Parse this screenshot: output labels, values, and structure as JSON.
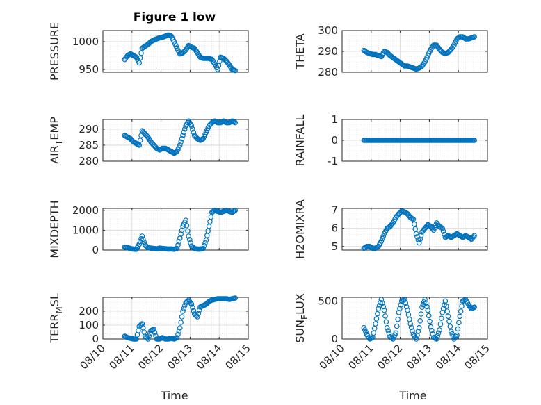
{
  "figure": {
    "title": "Figure 1 low",
    "xlabel": "Time"
  },
  "chart_data": [
    {
      "type": "scatter",
      "name": "pressure",
      "ylabel": "PRESSURE",
      "ylim": [
        945,
        1020
      ],
      "yticks": [
        950,
        1000
      ],
      "ytick_labels": [
        "950",
        "1000"
      ],
      "xlim": [
        0,
        5
      ],
      "x": [
        0.75,
        0.85,
        0.95,
        1.05,
        1.15,
        1.25,
        1.35,
        1.45,
        1.55,
        1.65,
        1.75,
        1.85,
        1.95,
        2.05,
        2.15,
        2.25,
        2.35,
        2.45,
        2.55,
        2.65,
        2.75,
        2.85,
        2.95,
        3.05,
        3.15,
        3.25,
        3.35,
        3.45,
        3.55,
        3.65,
        3.75,
        3.85,
        3.95,
        4.05,
        4.15,
        4.25,
        4.35,
        4.45,
        4.55
      ],
      "y": [
        968,
        975,
        978,
        975,
        972,
        962,
        988,
        992,
        995,
        1000,
        1003,
        1005,
        1007,
        1008,
        1010,
        1012,
        1010,
        1000,
        988,
        978,
        980,
        985,
        993,
        990,
        988,
        980,
        972,
        970,
        970,
        970,
        968,
        960,
        950,
        972,
        970,
        965,
        958,
        950,
        948
      ],
      "color": "#0072bd",
      "marker": "circle",
      "grid": true
    },
    {
      "type": "scatter",
      "name": "theta",
      "ylabel": "THETA",
      "ylim": [
        280,
        300
      ],
      "yticks": [
        280,
        290,
        300
      ],
      "ytick_labels": [
        "280",
        "290",
        "300"
      ],
      "xlim": [
        0,
        5
      ],
      "x": [
        0.75,
        0.85,
        0.95,
        1.05,
        1.15,
        1.25,
        1.35,
        1.45,
        1.55,
        1.65,
        1.75,
        1.85,
        1.95,
        2.05,
        2.15,
        2.25,
        2.35,
        2.45,
        2.55,
        2.65,
        2.75,
        2.85,
        2.95,
        3.05,
        3.15,
        3.25,
        3.35,
        3.45,
        3.55,
        3.65,
        3.75,
        3.85,
        3.95,
        4.05,
        4.15,
        4.25,
        4.35,
        4.45,
        4.55
      ],
      "y": [
        290.5,
        289.5,
        289,
        288.5,
        288.5,
        288,
        287.5,
        290,
        289.5,
        288,
        287,
        286,
        285,
        284,
        283,
        283,
        282.5,
        282,
        281.5,
        282,
        283,
        285,
        288,
        291,
        293,
        293,
        291,
        289.5,
        289,
        289.5,
        291,
        293,
        296,
        297,
        297,
        296,
        296,
        296.5,
        297
      ],
      "color": "#0072bd",
      "marker": "circle",
      "grid": true
    },
    {
      "type": "scatter",
      "name": "air_temp",
      "ylabel": "AIR_TEMP",
      "ylim": [
        280,
        293
      ],
      "yticks": [
        280,
        285,
        290
      ],
      "ytick_labels": [
        "280",
        "285",
        "290"
      ],
      "xlim": [
        0,
        5
      ],
      "x": [
        0.75,
        0.85,
        0.95,
        1.05,
        1.15,
        1.25,
        1.35,
        1.45,
        1.55,
        1.65,
        1.75,
        1.85,
        1.95,
        2.05,
        2.15,
        2.25,
        2.35,
        2.45,
        2.55,
        2.65,
        2.75,
        2.85,
        2.95,
        3.05,
        3.15,
        3.25,
        3.35,
        3.45,
        3.55,
        3.65,
        3.75,
        3.85,
        3.95,
        4.05,
        4.15,
        4.25,
        4.35,
        4.45,
        4.55
      ],
      "y": [
        288,
        287.5,
        287,
        286,
        285.5,
        285,
        289.5,
        288.5,
        287.5,
        286,
        285,
        284,
        283.5,
        284,
        284,
        283.5,
        283,
        282.5,
        283,
        285,
        288,
        291,
        292.5,
        291,
        288,
        287,
        286.5,
        287,
        289,
        291,
        292,
        292.5,
        292,
        292,
        292.5,
        292,
        292,
        292.5,
        292
      ],
      "color": "#0072bd",
      "marker": "circle",
      "grid": true
    },
    {
      "type": "scatter",
      "name": "rainfall",
      "ylabel": "RAINFALL",
      "ylim": [
        -1,
        1
      ],
      "yticks": [
        -1,
        0,
        1
      ],
      "ytick_labels": [
        "-1",
        "0",
        "1"
      ],
      "xlim": [
        0,
        5
      ],
      "x": [
        0.75,
        0.85,
        0.95,
        1.05,
        1.15,
        1.25,
        1.35,
        1.45,
        1.55,
        1.65,
        1.75,
        1.85,
        1.95,
        2.05,
        2.15,
        2.25,
        2.35,
        2.45,
        2.55,
        2.65,
        2.75,
        2.85,
        2.95,
        3.05,
        3.15,
        3.25,
        3.35,
        3.45,
        3.55,
        3.65,
        3.75,
        3.85,
        3.95,
        4.05,
        4.15,
        4.25,
        4.35,
        4.45,
        4.55
      ],
      "y": [
        0,
        0,
        0,
        0,
        0,
        0,
        0,
        0,
        0,
        0,
        0,
        0,
        0,
        0,
        0,
        0,
        0,
        0,
        0,
        0,
        0,
        0,
        0,
        0,
        0,
        0,
        0,
        0,
        0,
        0,
        0,
        0,
        0,
        0,
        0,
        0,
        0,
        0,
        0
      ],
      "color": "#0072bd",
      "marker": "circle",
      "grid": true
    },
    {
      "type": "scatter",
      "name": "mixdepth",
      "ylabel": "MIXDEPTH",
      "ylim": [
        0,
        2100
      ],
      "yticks": [
        0,
        1000,
        2000
      ],
      "ytick_labels": [
        "0",
        "1000",
        "2000"
      ],
      "xlim": [
        0,
        5
      ],
      "x": [
        0.75,
        0.85,
        0.95,
        1.05,
        1.15,
        1.25,
        1.35,
        1.45,
        1.55,
        1.65,
        1.75,
        1.85,
        1.95,
        2.05,
        2.15,
        2.25,
        2.35,
        2.45,
        2.55,
        2.65,
        2.75,
        2.85,
        2.95,
        3.05,
        3.15,
        3.25,
        3.35,
        3.45,
        3.55,
        3.65,
        3.75,
        3.85,
        3.95,
        4.05,
        4.15,
        4.25,
        4.35,
        4.45,
        4.55
      ],
      "y": [
        150,
        120,
        80,
        50,
        40,
        300,
        700,
        250,
        120,
        100,
        80,
        60,
        100,
        80,
        70,
        50,
        60,
        40,
        80,
        600,
        1200,
        1500,
        700,
        200,
        80,
        50,
        50,
        80,
        500,
        1200,
        1900,
        2000,
        1950,
        1900,
        1950,
        2000,
        1950,
        1900,
        2000
      ],
      "color": "#0072bd",
      "marker": "circle",
      "grid": true
    },
    {
      "type": "scatter",
      "name": "h2omixra",
      "ylabel": "H2OMIXRA",
      "ylim": [
        4.8,
        7.1
      ],
      "yticks": [
        5,
        6,
        7
      ],
      "ytick_labels": [
        "5",
        "6",
        "7"
      ],
      "xlim": [
        0,
        5
      ],
      "x": [
        0.75,
        0.85,
        0.95,
        1.05,
        1.15,
        1.25,
        1.35,
        1.45,
        1.55,
        1.65,
        1.75,
        1.85,
        1.95,
        2.05,
        2.15,
        2.25,
        2.35,
        2.45,
        2.55,
        2.65,
        2.75,
        2.85,
        2.95,
        3.05,
        3.15,
        3.25,
        3.35,
        3.45,
        3.55,
        3.65,
        3.75,
        3.85,
        3.95,
        4.05,
        4.15,
        4.25,
        4.35,
        4.45,
        4.55
      ],
      "y": [
        4.9,
        5,
        5,
        4.9,
        4.9,
        5,
        5.3,
        5.7,
        6,
        6.1,
        6.3,
        6.6,
        6.8,
        6.95,
        6.9,
        6.8,
        6.6,
        6.5,
        5.7,
        5.2,
        5.8,
        6,
        6.2,
        6.1,
        5.9,
        6.3,
        6.1,
        6,
        5.5,
        5.6,
        5.5,
        5.6,
        5.7,
        5.6,
        5.5,
        5.6,
        5.5,
        5.4,
        5.6
      ],
      "color": "#0072bd",
      "marker": "circle",
      "grid": true
    },
    {
      "type": "scatter",
      "name": "terr_msl",
      "ylabel": "TERR_MSL",
      "ylim": [
        0,
        300
      ],
      "yticks": [
        0,
        100,
        200
      ],
      "ytick_labels": [
        "0",
        "100",
        "200"
      ],
      "xlim": [
        0,
        5
      ],
      "x": [
        0.75,
        0.85,
        0.95,
        1.05,
        1.15,
        1.25,
        1.35,
        1.45,
        1.55,
        1.65,
        1.75,
        1.85,
        1.95,
        2.05,
        2.15,
        2.25,
        2.35,
        2.45,
        2.55,
        2.65,
        2.75,
        2.85,
        2.95,
        3.05,
        3.15,
        3.25,
        3.35,
        3.45,
        3.55,
        3.65,
        3.75,
        3.85,
        3.95,
        4.05,
        4.15,
        4.25,
        4.35,
        4.45,
        4.55
      ],
      "y": [
        20,
        10,
        5,
        0,
        0,
        90,
        110,
        20,
        0,
        60,
        70,
        0,
        0,
        10,
        0,
        0,
        5,
        0,
        10,
        80,
        200,
        260,
        280,
        250,
        180,
        160,
        230,
        240,
        250,
        270,
        280,
        285,
        290,
        290,
        290,
        290,
        285,
        290,
        295
      ],
      "color": "#0072bd",
      "marker": "circle",
      "grid": true
    },
    {
      "type": "scatter",
      "name": "sun_flux",
      "ylabel": "SUN_FLUX",
      "ylim": [
        0,
        550
      ],
      "yticks": [
        0,
        500
      ],
      "ytick_labels": [
        "0",
        "500"
      ],
      "xlim": [
        0,
        5
      ],
      "x": [
        0.75,
        0.85,
        0.95,
        1.05,
        1.15,
        1.25,
        1.35,
        1.45,
        1.55,
        1.65,
        1.75,
        1.85,
        1.95,
        2.05,
        2.15,
        2.25,
        2.35,
        2.45,
        2.55,
        2.65,
        2.75,
        2.85,
        2.95,
        3.05,
        3.15,
        3.25,
        3.35,
        3.45,
        3.55,
        3.65,
        3.75,
        3.85,
        3.95,
        4.05,
        4.15,
        4.25,
        4.35,
        4.45,
        4.55
      ],
      "y": [
        150,
        60,
        0,
        20,
        200,
        400,
        520,
        380,
        150,
        30,
        0,
        80,
        350,
        500,
        520,
        380,
        200,
        60,
        0,
        150,
        420,
        520,
        380,
        160,
        20,
        0,
        120,
        350,
        500,
        300,
        100,
        0,
        50,
        300,
        500,
        520,
        450,
        400,
        420
      ],
      "color": "#0072bd",
      "marker": "circle",
      "grid": true
    }
  ],
  "xaxis": {
    "ticks": [
      0,
      1,
      2,
      3,
      4,
      5
    ],
    "tick_labels": [
      "08/10",
      "08/11",
      "08/12",
      "08/13",
      "08/14",
      "08/15"
    ]
  }
}
